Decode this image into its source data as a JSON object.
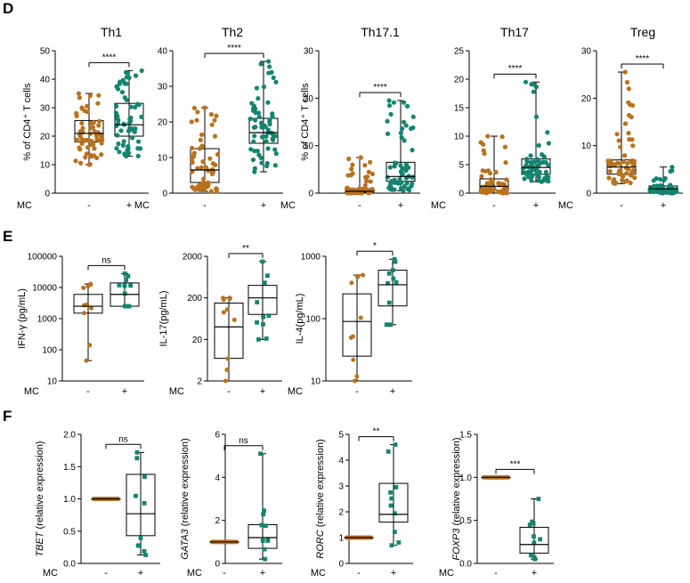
{
  "figure": {
    "panels": [
      "D",
      "E",
      "F"
    ],
    "x_row_label": "MC",
    "x_groups": [
      "-",
      "+"
    ],
    "colors": {
      "minus": "#b8721e",
      "plus": "#138470",
      "box": "#000000"
    }
  },
  "chart_data": [
    {
      "panel": "D",
      "type": "box",
      "title": "Th1",
      "ylabel": "% of CD4⁺ T cells",
      "scale": "linear",
      "ylim": [
        0,
        50
      ],
      "yticks": [
        "0",
        "10",
        "20",
        "30",
        "40",
        "50"
      ],
      "groups": [
        "-",
        "+"
      ],
      "significance": "****",
      "boxes": [
        {
          "group": "-",
          "min": 10,
          "q1": 18,
          "median": 21,
          "q3": 25.5,
          "max": 35
        },
        {
          "group": "+",
          "min": 13,
          "q1": 20,
          "median": 24,
          "q3": 31.5,
          "max": 43
        }
      ]
    },
    {
      "panel": "D",
      "type": "box",
      "title": "Th2",
      "ylabel": "",
      "scale": "linear",
      "ylim": [
        0,
        40
      ],
      "yticks": [
        "0",
        "10",
        "20",
        "30",
        "40"
      ],
      "groups": [
        "-",
        "+"
      ],
      "significance": "****",
      "boxes": [
        {
          "group": "-",
          "min": 0.5,
          "q1": 3,
          "median": 6.5,
          "q3": 12.5,
          "max": 24
        },
        {
          "group": "+",
          "min": 6,
          "q1": 14,
          "median": 17,
          "q3": 21,
          "max": 37
        }
      ]
    },
    {
      "panel": "D",
      "type": "box",
      "title": "Th17.1",
      "ylabel": "% of CD4⁺ T cells",
      "scale": "linear",
      "ylim": [
        0,
        30
      ],
      "yticks": [
        "0",
        "10",
        "20",
        "30"
      ],
      "groups": [
        "-",
        "+"
      ],
      "significance": "****",
      "boxes": [
        {
          "group": "-",
          "min": 0,
          "q1": 0.2,
          "median": 0.4,
          "q3": 0.9,
          "max": 7.5
        },
        {
          "group": "+",
          "min": 0.5,
          "q1": 2.5,
          "median": 3.5,
          "q3": 6.5,
          "max": 19.5
        }
      ]
    },
    {
      "panel": "D",
      "type": "box",
      "title": "Th17",
      "ylabel": "",
      "scale": "linear",
      "ylim": [
        0,
        25
      ],
      "yticks": [
        "0",
        "5",
        "10",
        "15",
        "20",
        "25"
      ],
      "groups": [
        "-",
        "+"
      ],
      "significance": "****",
      "boxes": [
        {
          "group": "-",
          "min": 0,
          "q1": 0.5,
          "median": 1.2,
          "q3": 2.5,
          "max": 10
        },
        {
          "group": "+",
          "min": 2,
          "q1": 3.3,
          "median": 4.5,
          "q3": 6,
          "max": 19.5
        }
      ]
    },
    {
      "panel": "D",
      "type": "box",
      "title": "Treg",
      "ylabel": "",
      "scale": "linear",
      "ylim": [
        0,
        30
      ],
      "yticks": [
        "0",
        "10",
        "20",
        "30"
      ],
      "groups": [
        "-",
        "+"
      ],
      "significance": "****",
      "boxes": [
        {
          "group": "-",
          "min": 2,
          "q1": 4,
          "median": 5.5,
          "q3": 7,
          "max": 25.5
        },
        {
          "group": "+",
          "min": 0,
          "q1": 0.5,
          "median": 0.9,
          "q3": 1.5,
          "max": 5.5
        }
      ]
    },
    {
      "panel": "E",
      "type": "box",
      "title": "",
      "ylabel": "IFN-γ (pg/mL)",
      "scale": "log",
      "ylim": [
        10,
        100000
      ],
      "yticks": [
        "10",
        "100",
        "1000",
        "10000",
        "100000"
      ],
      "groups": [
        "-",
        "+"
      ],
      "significance": "ns",
      "boxes": [
        {
          "group": "-",
          "min": 45,
          "q1": 1500,
          "median": 2500,
          "q3": 6000,
          "max": 13000
        },
        {
          "group": "+",
          "min": 2500,
          "q1": 2500,
          "median": 6000,
          "q3": 14000,
          "max": 28000
        }
      ]
    },
    {
      "panel": "E",
      "type": "box",
      "title": "",
      "ylabel": "IL-17(pg/mL)",
      "scale": "log",
      "ylim": [
        2,
        2000
      ],
      "yticks": [
        "2",
        "20",
        "200",
        "2000"
      ],
      "groups": [
        "-",
        "+"
      ],
      "significance": "**",
      "boxes": [
        {
          "group": "-",
          "min": 2,
          "q1": 7,
          "median": 40,
          "q3": 150,
          "max": 200
        },
        {
          "group": "+",
          "min": 20,
          "q1": 80,
          "median": 200,
          "q3": 400,
          "max": 1500
        }
      ]
    },
    {
      "panel": "E",
      "type": "box",
      "title": "",
      "ylabel": "IL-4(pg/mL)",
      "scale": "log",
      "ylim": [
        10,
        1000
      ],
      "yticks": [
        "10",
        "100",
        "1000"
      ],
      "groups": [
        "-",
        "+"
      ],
      "significance": "*",
      "boxes": [
        {
          "group": "-",
          "min": 10,
          "q1": 25,
          "median": 90,
          "q3": 250,
          "max": 500
        },
        {
          "group": "+",
          "min": 80,
          "q1": 160,
          "median": 350,
          "q3": 600,
          "max": 900
        }
      ]
    },
    {
      "panel": "F",
      "type": "box",
      "title": "",
      "gene": "TBET",
      "ylabel": "(relative expression)",
      "scale": "linear",
      "ylim": [
        0,
        2
      ],
      "yticks": [
        "0.0",
        "0.5",
        "1.0",
        "1.5",
        "2.0"
      ],
      "groups": [
        "-",
        "+"
      ],
      "significance": "ns",
      "boxes": [
        {
          "group": "-",
          "min": 1,
          "q1": 1,
          "median": 1,
          "q3": 1,
          "max": 1
        },
        {
          "group": "+",
          "min": 0.13,
          "q1": 0.43,
          "median": 0.77,
          "q3": 1.38,
          "max": 1.72
        }
      ]
    },
    {
      "panel": "F",
      "type": "box",
      "title": "",
      "gene": "GATA3",
      "ylabel": "(relative expression)",
      "scale": "linear",
      "ylim": [
        0,
        6
      ],
      "yticks": [
        "0",
        "2",
        "4",
        "6"
      ],
      "groups": [
        "-",
        "+"
      ],
      "significance": "ns",
      "boxes": [
        {
          "group": "-",
          "min": 1,
          "q1": 1,
          "median": 1,
          "q3": 1,
          "max": 1
        },
        {
          "group": "+",
          "min": 0.2,
          "q1": 0.7,
          "median": 1.2,
          "q3": 1.8,
          "max": 5.1
        }
      ]
    },
    {
      "panel": "F",
      "type": "box",
      "title": "",
      "gene": "RORC",
      "ylabel": "(relative expression)",
      "scale": "linear",
      "ylim": [
        0,
        5
      ],
      "yticks": [
        "0",
        "1",
        "2",
        "3",
        "4",
        "5"
      ],
      "groups": [
        "-",
        "+"
      ],
      "significance": "**",
      "boxes": [
        {
          "group": "-",
          "min": 1,
          "q1": 1,
          "median": 1,
          "q3": 1,
          "max": 1
        },
        {
          "group": "+",
          "min": 0.7,
          "q1": 1.6,
          "median": 1.9,
          "q3": 3.1,
          "max": 4.6
        }
      ]
    },
    {
      "panel": "F",
      "type": "box",
      "title": "",
      "gene": "FOXP3",
      "ylabel": "(relative expression)",
      "scale": "linear",
      "ylim": [
        0,
        1.5
      ],
      "yticks": [
        "0.0",
        "0.5",
        "1.0",
        "1.5"
      ],
      "groups": [
        "-",
        "+"
      ],
      "significance": "***",
      "boxes": [
        {
          "group": "-",
          "min": 1,
          "q1": 1,
          "median": 1,
          "q3": 1,
          "max": 1
        },
        {
          "group": "+",
          "min": 0.05,
          "q1": 0.12,
          "median": 0.22,
          "q3": 0.42,
          "max": 0.75
        }
      ]
    }
  ]
}
